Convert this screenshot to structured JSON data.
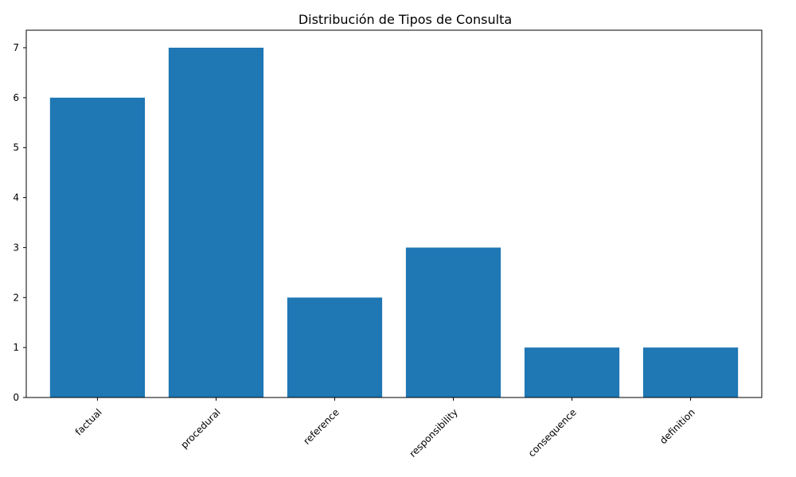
{
  "chart_data": {
    "type": "bar",
    "title": "Distribución de Tipos de Consulta",
    "xlabel": "",
    "ylabel": "",
    "categories": [
      "factual",
      "procedural",
      "reference",
      "responsibility",
      "consequence",
      "definition"
    ],
    "values": [
      6,
      7,
      2,
      3,
      1,
      1
    ],
    "yticks": [
      0,
      1,
      2,
      3,
      4,
      5,
      6,
      7
    ],
    "ylim": [
      0,
      7.35
    ],
    "grid": false,
    "legend": "none",
    "bar_color": "#1f77b4",
    "xtick_rotation": 45
  }
}
